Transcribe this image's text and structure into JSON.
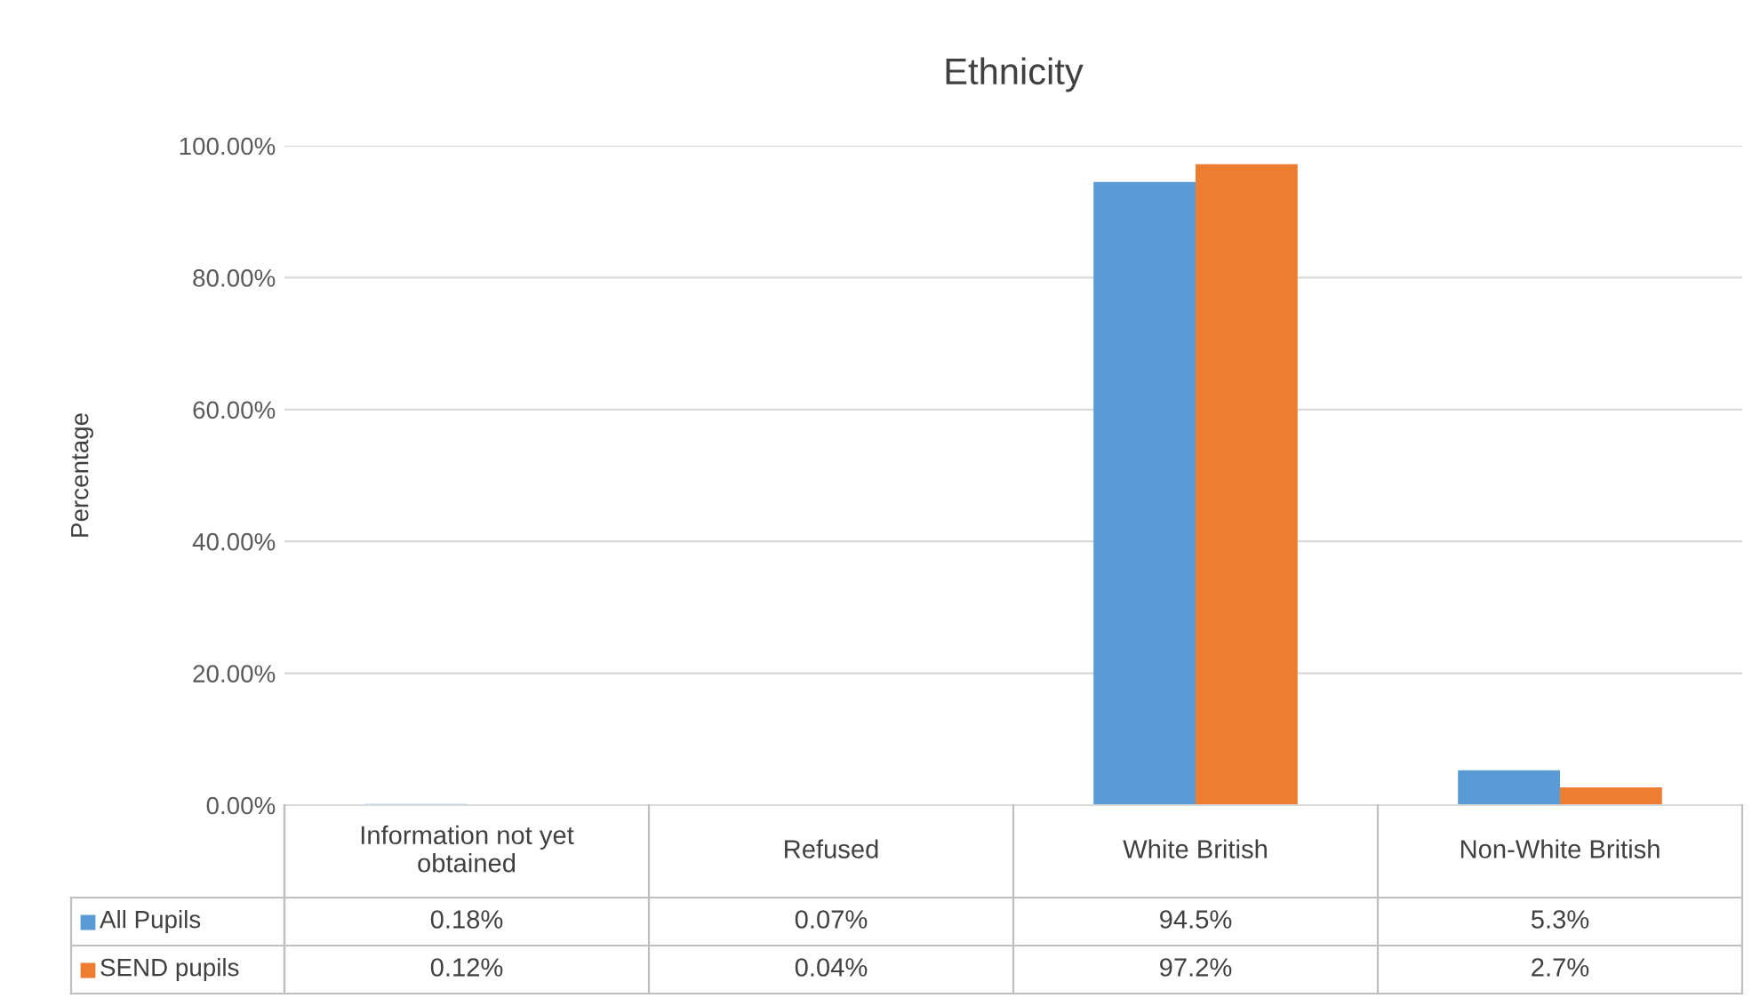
{
  "chart_data": {
    "type": "bar",
    "title": "Ethnicity",
    "ylabel": "Percentage",
    "categories": [
      "Information not yet obtained",
      "Refused",
      "White British",
      "Non-White British"
    ],
    "series": [
      {
        "name": "All Pupils",
        "color": "#5b9bd5",
        "values": [
          0.18,
          0.07,
          94.5,
          5.3
        ],
        "value_labels": [
          "0.18%",
          "0.07%",
          "94.5%",
          "5.3%"
        ]
      },
      {
        "name": "SEND pupils",
        "color": "#ed7d31",
        "values": [
          0.12,
          0.04,
          97.2,
          2.7
        ],
        "value_labels": [
          "0.12%",
          "0.04%",
          "97.2%",
          "2.7%"
        ]
      }
    ],
    "ylim": [
      0,
      100
    ],
    "yticks": [
      {
        "value": 0,
        "label": "0.00%"
      },
      {
        "value": 20,
        "label": "20.00%"
      },
      {
        "value": 40,
        "label": "40.00%"
      },
      {
        "value": 60,
        "label": "60.00%"
      },
      {
        "value": 80,
        "label": "80.00%"
      },
      {
        "value": 100,
        "label": "100.00%"
      }
    ],
    "grid": "y",
    "legend": "bottom"
  }
}
